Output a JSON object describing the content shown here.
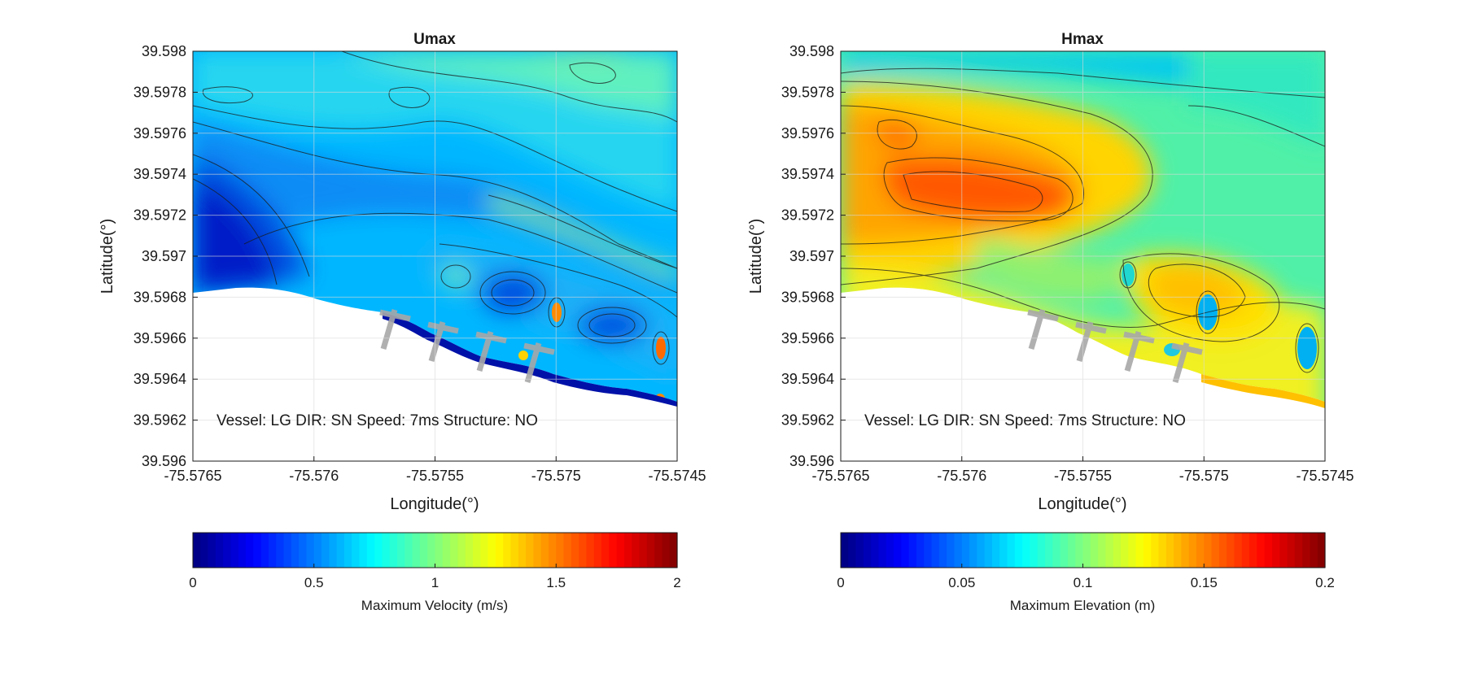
{
  "chart_data": [
    {
      "type": "heatmap",
      "title": "Umax",
      "xlabel": "Longitude(°)",
      "ylabel": "Latitude(°)",
      "xlim": [
        -75.5765,
        -75.5745
      ],
      "ylim": [
        39.596,
        39.598
      ],
      "x_ticks": [
        "-75.5765",
        "-75.576",
        "-75.5755",
        "-75.575",
        "-75.5745"
      ],
      "y_ticks": [
        "39.598",
        "39.5978",
        "39.5976",
        "39.5974",
        "39.5972",
        "39.597",
        "39.5968",
        "39.5966",
        "39.5964",
        "39.5962",
        "39.596"
      ],
      "annotation": "Vessel: LG DIR: SN Speed: 7ms Structure: NO",
      "grid": true,
      "colormap": "jet",
      "colorbar": {
        "label": "Maximum Velocity (m/s)",
        "range": [
          0,
          2
        ],
        "ticks": [
          "0",
          "0.5",
          "1",
          "1.5",
          "2"
        ]
      },
      "field_description_levels": {
        "west_region": 0.2,
        "north_region": 0.85,
        "eddy_peaks": 1.4
      }
    },
    {
      "type": "heatmap",
      "title": "Hmax",
      "xlabel": "Longitude(°)",
      "ylabel": "Latitude(°)",
      "xlim": [
        -75.5765,
        -75.5745
      ],
      "ylim": [
        39.596,
        39.598
      ],
      "x_ticks": [
        "-75.5765",
        "-75.576",
        "-75.5755",
        "-75.575",
        "-75.5745"
      ],
      "y_ticks": [
        "39.598",
        "39.5978",
        "39.5976",
        "39.5974",
        "39.5972",
        "39.597",
        "39.5968",
        "39.5966",
        "39.5964",
        "39.5962",
        "39.596"
      ],
      "annotation": "Vessel: LG DIR: SN Speed: 7ms Structure: NO",
      "grid": true,
      "colormap": "jet",
      "colorbar": {
        "label": "Maximum Elevation (m)",
        "range": [
          0,
          0.2
        ],
        "ticks": [
          "0",
          "0.05",
          "0.1",
          "0.15",
          "0.2"
        ]
      },
      "field_description_levels": {
        "hotspot_peak": 0.16,
        "west_region": 0.13,
        "north_region": 0.07
      }
    }
  ],
  "colors": {
    "land": "#ffffff",
    "structure": "#a8a8a8",
    "contour": "#1a1a1a",
    "grid": "#d9d9d9"
  }
}
